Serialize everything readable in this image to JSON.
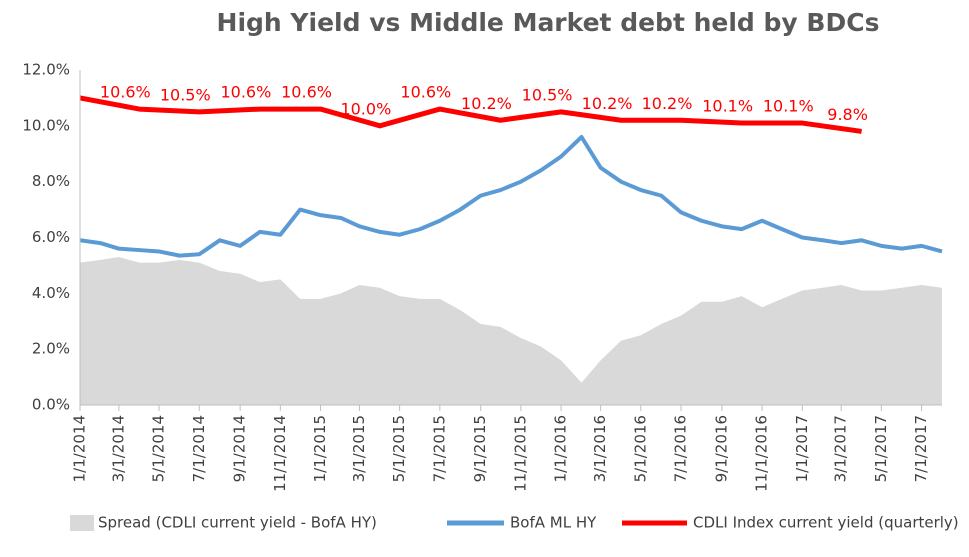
{
  "chart_data": {
    "type": "line",
    "title": "High Yield  vs  Middle Market debt held by BDCs",
    "x": [
      "1/1/2014",
      "2/1/2014",
      "3/1/2014",
      "4/1/2014",
      "5/1/2014",
      "6/1/2014",
      "7/1/2014",
      "8/1/2014",
      "9/1/2014",
      "10/1/2014",
      "11/1/2014",
      "12/1/2014",
      "1/1/2015",
      "2/1/2015",
      "3/1/2015",
      "4/1/2015",
      "5/1/2015",
      "6/1/2015",
      "7/1/2015",
      "8/1/2015",
      "9/1/2015",
      "10/1/2015",
      "11/1/2015",
      "12/1/2015",
      "1/1/2016",
      "2/1/2016",
      "3/1/2016",
      "4/1/2016",
      "5/1/2016",
      "6/1/2016",
      "7/1/2016",
      "8/1/2016",
      "9/1/2016",
      "10/1/2016",
      "11/1/2016",
      "12/1/2016",
      "1/1/2017",
      "2/1/2017",
      "3/1/2017",
      "4/1/2017",
      "5/1/2017",
      "6/1/2017",
      "7/1/2017",
      "8/1/2017"
    ],
    "series": [
      {
        "name": "Spread (CDLI current yield - BofA HY)",
        "kind": "area",
        "color": "#d9d9d9",
        "values": [
          5.1,
          5.2,
          5.3,
          5.1,
          5.1,
          5.2,
          5.1,
          4.8,
          4.7,
          4.4,
          4.5,
          3.8,
          3.8,
          4.0,
          4.3,
          4.2,
          3.9,
          3.8,
          3.8,
          3.4,
          2.9,
          2.8,
          2.4,
          2.1,
          1.6,
          0.8,
          1.6,
          2.3,
          2.5,
          2.9,
          3.2,
          3.7,
          3.7,
          3.9,
          3.5,
          3.8,
          4.1,
          4.2,
          4.3,
          4.1,
          4.1,
          4.2,
          4.3,
          4.2
        ]
      },
      {
        "name": "BofA ML HY",
        "kind": "line",
        "color": "#5b9bd5",
        "values": [
          5.9,
          5.8,
          5.6,
          5.55,
          5.5,
          5.35,
          5.4,
          5.9,
          5.7,
          6.2,
          6.1,
          7.0,
          6.8,
          6.7,
          6.4,
          6.2,
          6.1,
          6.3,
          6.6,
          7.0,
          7.5,
          7.7,
          8.0,
          8.4,
          8.9,
          9.6,
          8.5,
          8.0,
          7.7,
          7.5,
          6.9,
          6.6,
          6.4,
          6.3,
          6.6,
          6.3,
          6.0,
          5.9,
          5.8,
          5.9,
          5.7,
          5.6,
          5.7,
          5.5
        ]
      },
      {
        "name": "CDLI Index current yield (quarterly)",
        "kind": "line",
        "color": "#ff0000",
        "x": [
          "1/1/2014",
          "4/1/2014",
          "7/1/2014",
          "10/1/2014",
          "1/1/2015",
          "4/1/2015",
          "7/1/2015",
          "10/1/2015",
          "1/1/2016",
          "4/1/2016",
          "7/1/2016",
          "10/1/2016",
          "1/1/2017",
          "4/1/2017"
        ],
        "values": [
          11.0,
          10.6,
          10.5,
          10.6,
          10.6,
          10.0,
          10.6,
          10.2,
          10.5,
          10.2,
          10.2,
          10.1,
          10.1,
          9.8
        ],
        "value_labels": [
          null,
          "10.6%",
          "10.5%",
          "10.6%",
          "10.6%",
          "10.0%",
          "10.6%",
          "10.2%",
          "10.5%",
          "10.2%",
          "10.2%",
          "10.1%",
          "10.1%",
          "9.8%"
        ]
      }
    ],
    "xlim": [
      "1/1/2014",
      "8/1/2017"
    ],
    "xticks": [
      "1/1/2014",
      "3/1/2014",
      "5/1/2014",
      "7/1/2014",
      "9/1/2014",
      "11/1/2014",
      "1/1/2015",
      "3/1/2015",
      "5/1/2015",
      "7/1/2015",
      "9/1/2015",
      "11/1/2015",
      "1/1/2016",
      "3/1/2016",
      "5/1/2016",
      "7/1/2016",
      "9/1/2016",
      "11/1/2016",
      "1/1/2017",
      "3/1/2017",
      "5/1/2017",
      "7/1/2017"
    ],
    "ylim": [
      0,
      12
    ],
    "yticks": [
      {
        "value": 0,
        "label": "0.0%"
      },
      {
        "value": 2,
        "label": "2.0%"
      },
      {
        "value": 4,
        "label": "4.0%"
      },
      {
        "value": 6,
        "label": "6.0%"
      },
      {
        "value": 8,
        "label": "8.0%"
      },
      {
        "value": 10,
        "label": "10.0%"
      },
      {
        "value": 12,
        "label": "12.0%"
      }
    ],
    "grid": false,
    "legend": "bottom"
  }
}
